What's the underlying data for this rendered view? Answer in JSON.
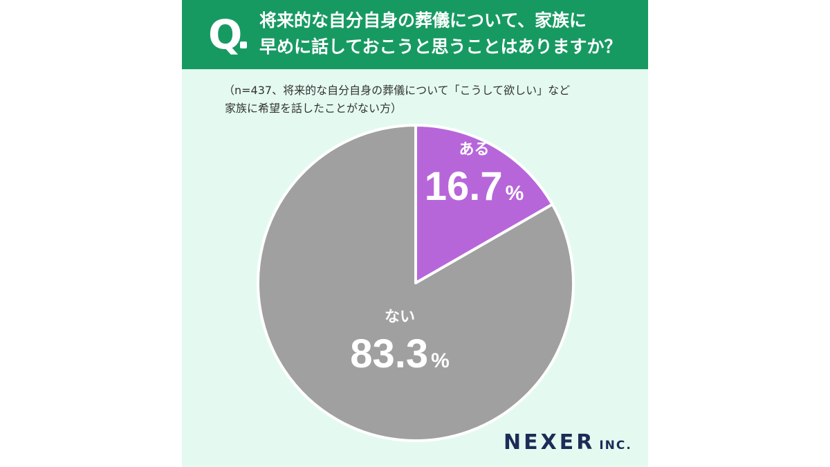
{
  "question": {
    "mark": "Q",
    "line1": "将来的な自分自身の葬儀について、家族に",
    "line2": "早めに話しておこうと思うことはありますか？"
  },
  "note": {
    "line1": "（n=437、将来的な自分自身の葬儀について「こうして欲しい」など",
    "line2": "家族に希望を話したことがない方）"
  },
  "colors": {
    "header": "#179a62",
    "background": "#e4faf0",
    "slice_aru": "#b766da",
    "slice_nai": "#a0a0a0"
  },
  "chart_data": {
    "type": "pie",
    "start": "12 o'clock, clockwise",
    "slices": [
      {
        "label": "ある",
        "value": 16.7,
        "display": "16.7",
        "unit": "%",
        "color": "#b766da"
      },
      {
        "label": "ない",
        "value": 83.3,
        "display": "83.3",
        "unit": "%",
        "color": "#a0a0a0"
      }
    ]
  },
  "logo": {
    "name": "NEXER",
    "suffix": "INC."
  }
}
